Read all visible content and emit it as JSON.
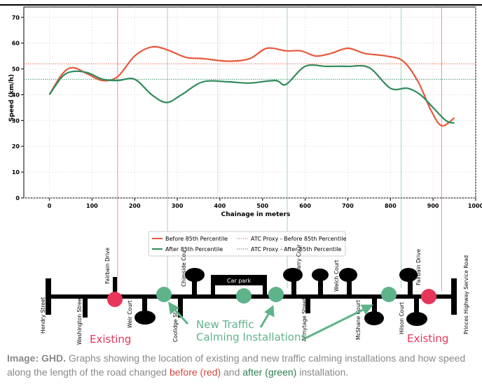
{
  "chart_data": {
    "type": "line",
    "xlabel": "Chainage in meters",
    "ylabel": "Speed (km/h)",
    "xlim": [
      -60,
      1000
    ],
    "ylim": [
      0,
      74
    ],
    "xticks": [
      0,
      100,
      200,
      300,
      400,
      500,
      600,
      700,
      800,
      900,
      1000
    ],
    "yticks": [
      0,
      10,
      20,
      30,
      40,
      50,
      60,
      70
    ],
    "grid": true,
    "legend_position": "bottom-center",
    "series": [
      {
        "name": "Before 85th Percentile",
        "color": "#e8583a",
        "style": "solid",
        "x": [
          0,
          30,
          55,
          90,
          125,
          160,
          200,
          240,
          275,
          320,
          360,
          420,
          470,
          510,
          555,
          590,
          625,
          660,
          700,
          740,
          790,
          830,
          865,
          895,
          920,
          950
        ],
        "values": [
          40,
          48,
          50.5,
          48,
          45.5,
          47,
          55,
          58.5,
          57.5,
          54.5,
          54,
          53,
          54,
          58,
          57,
          57,
          55,
          56,
          58,
          56,
          55,
          53,
          45,
          34,
          28,
          31
        ]
      },
      {
        "name": "After 85th Percentile",
        "color": "#2f8a5a",
        "style": "solid",
        "x": [
          0,
          30,
          55,
          90,
          125,
          160,
          200,
          240,
          275,
          310,
          360,
          420,
          470,
          530,
          555,
          600,
          650,
          700,
          750,
          800,
          840,
          870,
          900,
          930,
          950
        ],
        "values": [
          40,
          47,
          49,
          48.5,
          46,
          45.5,
          46,
          40,
          37,
          40,
          45,
          45,
          44.5,
          45.5,
          44,
          51,
          51,
          51,
          50.5,
          42.5,
          42.5,
          40,
          35,
          30,
          29
        ]
      },
      {
        "name": "ATC Proxy - Before 85th Percentile",
        "color": "#e8583a",
        "style": "dotted",
        "x": [
          -60,
          1000
        ],
        "values": [
          52,
          52
        ]
      },
      {
        "name": "ATC Proxy - After 85th Percentile",
        "color": "#2f8a5a",
        "style": "dotted",
        "x": [
          -60,
          1000
        ],
        "values": [
          46,
          46
        ]
      }
    ],
    "marker_lines": {
      "existing_red": [
        160,
        920
      ],
      "new_green": [
        277,
        558,
        825
      ],
      "extra_green_light": [
        395
      ]
    }
  },
  "diagram": {
    "streets": [
      "Hendry Street",
      "Washington Street",
      "Fairbain Drive",
      "Weir Court",
      "Coolidge St",
      "Chimside Cou",
      "Car park",
      "Mcharry Cour",
      "Armytage Street",
      "Welch Court",
      "McShane Court",
      "Hilson Court",
      "Fairbain Drive",
      "Princes Highway Service Road"
    ],
    "labels": {
      "existing_left": "Existing",
      "existing_right": "Existing",
      "new_line1": "New Traffic",
      "new_line2": "Calming Installations"
    },
    "colors": {
      "red": "#e8365a",
      "green": "#5fb38a",
      "road": "#000000"
    }
  },
  "caption": {
    "lead": "Image: GHD.",
    "text_1": " Graphs showing the location of existing and new traffic calming installations and how speed along the length of the road changed ",
    "before": "before (red)",
    "text_2": " and ",
    "after": "after (green)",
    "text_3": " installation."
  }
}
